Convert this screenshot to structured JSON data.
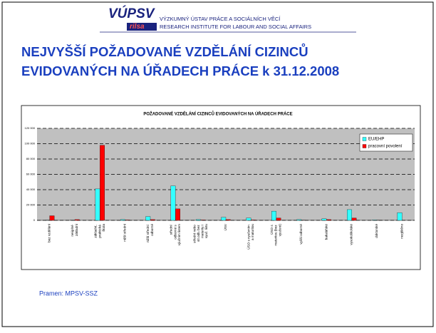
{
  "header": {
    "logo": "VÚPSV",
    "logo_sub": "rilsa",
    "name_cz": "VÝZKUMNÝ ÚSTAV PRÁCE A SOCIÁLNÍCH VĚCÍ",
    "name_en": "RESEARCH INSTITUTE FOR LABOUR AND SOCIAL AFFAIRS"
  },
  "slide_title": [
    "NEJVYŠŠÍ POŽADOVANÉ VZDĚLÁNÍ CIZINCŮ",
    "EVIDOVANÝCH NA ÚŘADECH PRÁCE k 31.12.2008"
  ],
  "chart_data": {
    "type": "bar",
    "title": "POŽADOVANÉ VZDĚLÁNÍ CIZINCŮ EVIDOVANÝCH NA ÚŘADECH PRÁCE",
    "categories": [
      "bez vzdělání",
      "neúplné základní",
      "základní, praktická škola",
      "nižší střední",
      "nižší střední odborné",
      "střední odborné s výučním listem",
      "střední nebo str.odb. bez maturity i vyuč. listu",
      "ÚSV",
      "ÚSO s vyučením a maturitou",
      "ÚSO s maturitou (bez vyučení)",
      "vyšší odborné",
      "bakalářské",
      "vysokoškolské",
      "doktorské",
      "nezjištěno"
    ],
    "series": [
      {
        "name": "EU/EHP",
        "color": "#33ffff",
        "values": [
          300,
          200,
          41000,
          1000,
          5000,
          45000,
          1000,
          4000,
          3000,
          12000,
          1000,
          2000,
          14000,
          500,
          10000
        ]
      },
      {
        "name": "pracovní povolení",
        "color": "#ff0000",
        "values": [
          6000,
          1000,
          98000,
          500,
          1000,
          15000,
          500,
          1000,
          500,
          3000,
          300,
          1000,
          3000,
          200,
          0
        ]
      }
    ],
    "ylim": [
      0,
      120000
    ],
    "yticks": [
      0,
      {
        "value": 20000,
        "label": "20 000"
      },
      {
        "value": 40000,
        "label": "40 000"
      },
      {
        "value": 60000,
        "label": "60 000"
      },
      {
        "value": 80000,
        "label": "80 000"
      },
      {
        "value": 100000,
        "label": "100 000"
      },
      {
        "value": 120000,
        "label": "120 000"
      }
    ],
    "grid": true,
    "legend": "top-right"
  },
  "source": "Pramen: MPSV-SSZ"
}
